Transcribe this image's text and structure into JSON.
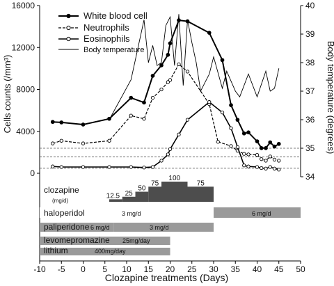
{
  "chart_data": {
    "type": "line",
    "xlabel": "Clozapine treatments (Days)",
    "ylabel_left": "Cells counts (/mm³)",
    "ylabel_right": "Body temperature (degrees)",
    "xlim": [
      -10,
      50
    ],
    "xticks": [
      "-10",
      "-5",
      "0",
      "5",
      "10",
      "15",
      "20",
      "25",
      "30",
      "35",
      "40",
      "45",
      "50"
    ],
    "ylim_left": [
      0,
      16000
    ],
    "yticks_left": [
      "0",
      "4000",
      "8000",
      "12000",
      "16000"
    ],
    "ylim_right": [
      34,
      40
    ],
    "yticks_right": [
      "34",
      "35",
      "36",
      "37",
      "38",
      "39",
      "40"
    ],
    "series": [
      {
        "name": "White blood cell",
        "axis": "left",
        "style": "solid-filled-dots",
        "points": [
          [
            -7,
            4900
          ],
          [
            -5,
            4850
          ],
          [
            0,
            4650
          ],
          [
            6,
            5200
          ],
          [
            11,
            7200
          ],
          [
            14,
            6750
          ],
          [
            16,
            9300
          ],
          [
            18,
            10300
          ],
          [
            19.5,
            11300
          ],
          [
            20,
            12400
          ],
          [
            22,
            14600
          ],
          [
            24,
            14500
          ],
          [
            29,
            13400
          ],
          [
            32,
            10800
          ],
          [
            34,
            6500
          ],
          [
            35.5,
            5100
          ],
          [
            37,
            3800
          ],
          [
            38,
            3900
          ],
          [
            40,
            3050
          ],
          [
            41,
            2400
          ],
          [
            42,
            2400
          ],
          [
            43,
            2950
          ],
          [
            44,
            2550
          ],
          [
            45,
            2800
          ]
        ]
      },
      {
        "name": "Neutrophils",
        "axis": "left",
        "style": "dashed-open-dots",
        "points": [
          [
            -7,
            2850
          ],
          [
            -5,
            3100
          ],
          [
            0,
            2850
          ],
          [
            6,
            3100
          ],
          [
            11,
            5500
          ],
          [
            14,
            5200
          ],
          [
            16,
            7200
          ],
          [
            18,
            8000
          ],
          [
            19.5,
            8700
          ],
          [
            20,
            8900
          ],
          [
            22,
            10400
          ],
          [
            24,
            9700
          ],
          [
            29,
            6600
          ],
          [
            31,
            3000
          ],
          [
            34,
            2600
          ],
          [
            35.5,
            2150
          ],
          [
            37,
            1850
          ],
          [
            38,
            1800
          ],
          [
            40,
            1750
          ],
          [
            41,
            1350
          ],
          [
            42,
            1200
          ],
          [
            43,
            1600
          ],
          [
            44,
            1300
          ],
          [
            45,
            1200
          ]
        ]
      },
      {
        "name": "Eosinophils",
        "axis": "left",
        "style": "solid-open-dots",
        "points": [
          [
            -7,
            650
          ],
          [
            -5,
            600
          ],
          [
            0,
            600
          ],
          [
            6,
            600
          ],
          [
            11,
            600
          ],
          [
            14,
            550
          ],
          [
            16,
            600
          ],
          [
            18,
            1200
          ],
          [
            19.5,
            1800
          ],
          [
            20,
            2300
          ],
          [
            22,
            3700
          ],
          [
            24,
            5100
          ],
          [
            29,
            6800
          ],
          [
            32,
            5800
          ],
          [
            34,
            4300
          ],
          [
            35.5,
            2500
          ],
          [
            37,
            750
          ],
          [
            38,
            650
          ],
          [
            40,
            600
          ],
          [
            41,
            500
          ],
          [
            42,
            450
          ],
          [
            43,
            600
          ],
          [
            44,
            450
          ],
          [
            45,
            350
          ]
        ]
      },
      {
        "name": "Body temperature",
        "axis": "right",
        "style": "thin-solid",
        "points": [
          [
            6,
            36.0
          ],
          [
            11,
            37.4
          ],
          [
            14,
            39.5
          ],
          [
            15,
            38.0
          ],
          [
            16,
            38.6
          ],
          [
            17,
            37.9
          ],
          [
            18,
            38.0
          ],
          [
            19,
            39.3
          ],
          [
            20,
            39.6
          ],
          [
            21,
            37.9
          ],
          [
            22,
            39.7
          ],
          [
            23,
            37.2
          ],
          [
            24,
            39.5
          ],
          [
            25,
            38.7
          ],
          [
            26,
            38.0
          ],
          [
            27,
            37.0
          ],
          [
            28,
            37.3
          ],
          [
            29,
            37.6
          ],
          [
            30,
            38.2
          ],
          [
            32,
            37.1
          ],
          [
            33,
            37.7
          ],
          [
            35,
            37.0
          ],
          [
            36,
            36.8
          ],
          [
            38,
            37.6
          ],
          [
            40,
            36.8
          ],
          [
            42,
            37.7
          ],
          [
            43,
            37.0
          ],
          [
            44,
            37.1
          ],
          [
            45,
            37.8
          ]
        ]
      }
    ],
    "reference_lines_right": [
      35.0,
      34.7,
      34.3
    ],
    "legend_position": "top-left",
    "grid": false,
    "medications": {
      "clozapine": {
        "label": "clozapine",
        "unit": "(mg/d)",
        "steps": [
          {
            "start": 6,
            "end": 9,
            "dose": 12.5,
            "label": "12.5"
          },
          {
            "start": 9,
            "end": 12,
            "dose": 25,
            "label": "25"
          },
          {
            "start": 12,
            "end": 15,
            "dose": 50,
            "label": "50"
          },
          {
            "start": 15,
            "end": 18,
            "dose": 75,
            "label": "75"
          },
          {
            "start": 18,
            "end": 24,
            "dose": 100,
            "label": "100"
          },
          {
            "start": 24,
            "end": 30,
            "dose": 75,
            "label": "75"
          }
        ]
      },
      "bars": [
        {
          "name": "haloperidol",
          "segments": [
            {
              "start": -10,
              "end": 30,
              "text": "3 mg/d",
              "filled": false
            },
            {
              "start": 30,
              "end": 50,
              "text": "6 mg/d",
              "filled": true
            }
          ]
        },
        {
          "name": "paliperidone",
          "segments": [
            {
              "start": -10,
              "end": 7,
              "text": "6 mg/d",
              "filled": true
            },
            {
              "start": 7,
              "end": 30,
              "text": "3 mg/d",
              "filled": true
            }
          ]
        },
        {
          "name": "levomepromazine",
          "segments": [
            {
              "start": -10,
              "end": 20,
              "text": "25mg/day",
              "filled": true
            }
          ]
        },
        {
          "name": "lithium",
          "segments": [
            {
              "start": -10,
              "end": 20,
              "text": "400mg/day",
              "filled": true
            }
          ]
        }
      ]
    }
  }
}
